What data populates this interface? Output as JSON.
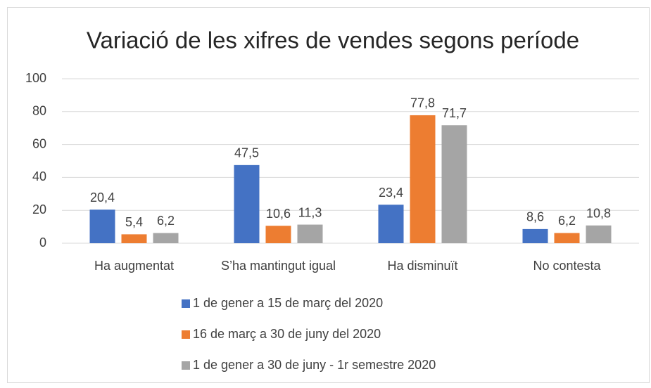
{
  "chart_data": {
    "type": "bar",
    "title": "Variació de les xifres de vendes segons període",
    "categories": [
      "Ha augmentat",
      "S’ha mantingut igual",
      "Ha disminuït",
      "No contesta"
    ],
    "series": [
      {
        "name": "1 de gener a 15 de març del 2020",
        "color": "#4472c4",
        "values": [
          20.4,
          47.5,
          23.4,
          8.6
        ],
        "value_labels": [
          "20,4",
          "47,5",
          "23,4",
          "8,6"
        ]
      },
      {
        "name": "16 de març a 30 de juny del 2020",
        "color": "#ed7d31",
        "values": [
          5.4,
          10.6,
          77.8,
          6.2
        ],
        "value_labels": [
          "5,4",
          "10,6",
          "77,8",
          "6,2"
        ]
      },
      {
        "name": "1 de gener a 30 de juny - 1r semestre 2020",
        "color": "#a5a5a5",
        "values": [
          6.2,
          11.3,
          71.7,
          10.8
        ],
        "value_labels": [
          "6,2",
          "11,3",
          "71,7",
          "10,8"
        ]
      }
    ],
    "ylim": [
      0,
      100
    ],
    "yticks": [
      0,
      20,
      40,
      60,
      80,
      100
    ],
    "grid": true,
    "legend": "bottom"
  }
}
